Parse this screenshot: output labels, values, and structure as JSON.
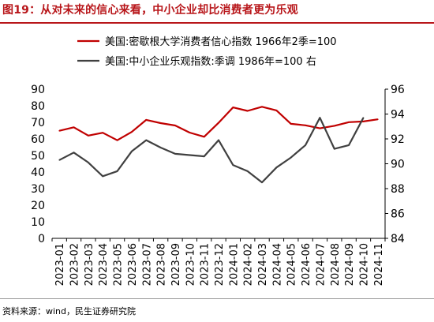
{
  "header": {
    "title": "图19：从对未来的信心来看，中小企业却比消费者更为乐观"
  },
  "footer": {
    "source": "资料来源：wind，民生证券研究院"
  },
  "chart_data": {
    "type": "line",
    "categories": [
      "2023-01",
      "2023-02",
      "2023-03",
      "2023-04",
      "2023-05",
      "2023-06",
      "2023-07",
      "2023-08",
      "2023-09",
      "2023-10",
      "2023-11",
      "2023-12",
      "2024-01",
      "2024-02",
      "2024-03",
      "2024-04",
      "2024-05",
      "2024-06",
      "2024-07",
      "2024-08",
      "2024-09",
      "2024-10",
      "2024-11"
    ],
    "legend_position": "top",
    "grid": false,
    "series": [
      {
        "name": "美国:密歇根大学消费者信心指数 1966年2季=100",
        "axis": "left",
        "color": "#c00000",
        "values": [
          64.9,
          67.0,
          62.0,
          63.7,
          59.2,
          64.2,
          71.5,
          69.5,
          68.1,
          63.8,
          61.3,
          69.7,
          79.0,
          76.9,
          79.4,
          77.2,
          69.1,
          68.2,
          66.4,
          67.9,
          70.1,
          70.5,
          71.8
        ]
      },
      {
        "name": "美国:中小企业乐观指数:季调 1986年=100 右",
        "axis": "right",
        "color": "#404040",
        "values": [
          90.3,
          90.9,
          90.1,
          89.0,
          89.4,
          91.0,
          91.9,
          91.3,
          90.8,
          90.7,
          90.6,
          91.9,
          89.9,
          89.4,
          88.5,
          89.7,
          90.5,
          91.5,
          93.7,
          91.2,
          91.5,
          93.7,
          null
        ]
      }
    ],
    "y_left": {
      "lim": [
        0,
        90
      ],
      "ticks": [
        "0",
        "10",
        "20",
        "30",
        "40",
        "50",
        "60",
        "70",
        "80",
        "90"
      ]
    },
    "y_right": {
      "lim": [
        84,
        96
      ],
      "ticks": [
        "84",
        "86",
        "88",
        "90",
        "92",
        "94",
        "96"
      ]
    }
  }
}
